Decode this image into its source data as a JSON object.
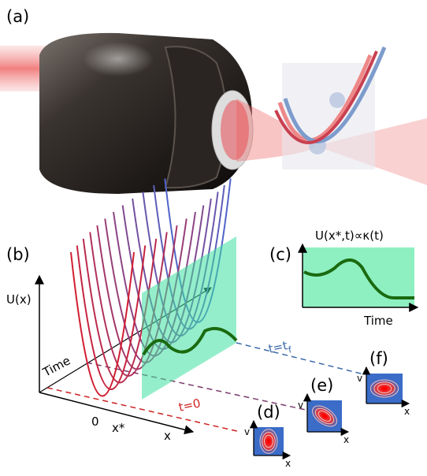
{
  "panels": {
    "a": {
      "label": "(a)"
    },
    "b": {
      "label": "(b)",
      "y_axis": "U(x)",
      "time_axis": "Time",
      "x_origin": "0",
      "x_star": "x*",
      "x_axis": "x",
      "t_final": "t=t",
      "t_final_sub": "f",
      "t_initial": "t=0"
    },
    "c": {
      "label": "(c)",
      "title": "U(x*,t)∝κ(t)",
      "x_axis": "Time"
    },
    "d": {
      "label": "(d)",
      "x_axis": "x",
      "y_axis": "v"
    },
    "e": {
      "label": "(e)",
      "x_axis": "x",
      "y_axis": "v"
    },
    "f": {
      "label": "(f)",
      "x_axis": "x",
      "y_axis": "v"
    }
  }
}
